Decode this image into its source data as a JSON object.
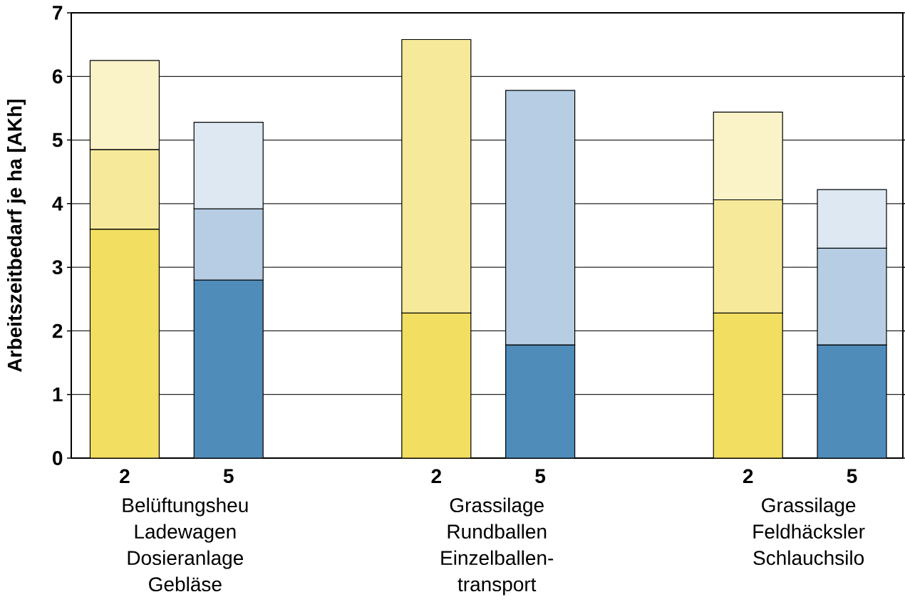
{
  "chart_data": {
    "type": "bar",
    "stacked": true,
    "ylabel": "Arbeitszeitbedarf je ha [AKh]",
    "categories": [
      "2",
      "5",
      null,
      "2",
      "5",
      null,
      "2",
      "5"
    ],
    "series": [
      {
        "values": [
          3.6,
          2.8,
          null,
          2.28,
          1.78,
          null,
          2.28,
          1.78
        ],
        "colors": [
          "#f2de60",
          "#4f8cba",
          null,
          "#f2de60",
          "#4f8cba",
          null,
          "#f2de60",
          "#4f8cba"
        ]
      },
      {
        "values": [
          1.25,
          1.12,
          null,
          4.3,
          4.0,
          null,
          1.78,
          1.52
        ],
        "colors": [
          "#f7e99a",
          "#b6cde3",
          null,
          "#f7e99a",
          "#b6cde3",
          null,
          "#f7e99a",
          "#b6cde3"
        ]
      },
      {
        "values": [
          1.4,
          1.36,
          null,
          null,
          null,
          null,
          1.38,
          0.92
        ],
        "colors": [
          "#faf3c8",
          "#dde8f2",
          null,
          null,
          null,
          null,
          "#faf3c8",
          "#dde8f2"
        ]
      }
    ],
    "ylim": [
      0,
      7
    ],
    "yticks": [
      0,
      1,
      2,
      3,
      4,
      5,
      6,
      7
    ],
    "grid": "y",
    "annotations": [
      "Belüftungsheu Ladewagen Dosieranlage Gebläse",
      "Grassilage Rundballen Einzelballen-transport",
      "Grassilage Feldhäcksler Schlauchsilo"
    ]
  }
}
